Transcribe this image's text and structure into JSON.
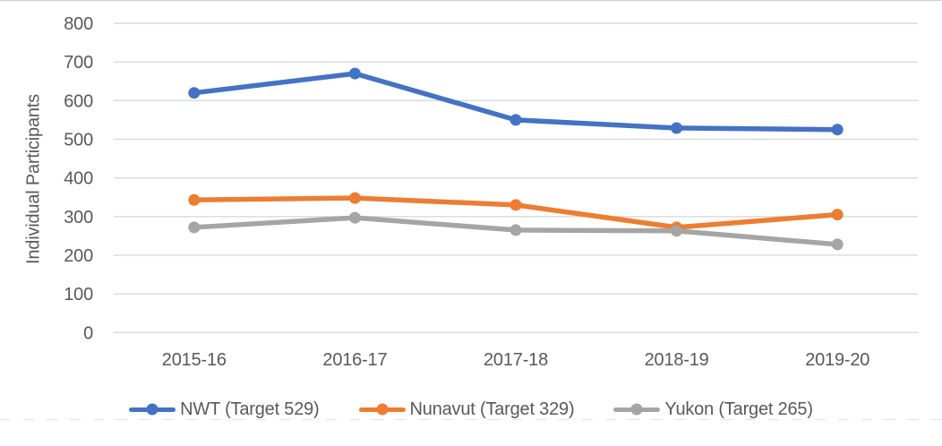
{
  "page": {
    "background": "#ffffff",
    "top_border_color": "#cfcfcf",
    "text_color": "#595959"
  },
  "chart_data": {
    "type": "line",
    "title": "",
    "xlabel": "",
    "ylabel": "Individual Participants",
    "categories": [
      "2015-16",
      "2016-17",
      "2017-18",
      "2018-19",
      "2019-20"
    ],
    "series": [
      {
        "name": "NWT (Target 529)",
        "key": "nwt",
        "color": "#4472C4",
        "values": [
          620,
          670,
          550,
          529,
          525
        ]
      },
      {
        "name": "Nunavut (Target 329)",
        "key": "nunavut",
        "color": "#ED7D31",
        "values": [
          343,
          348,
          330,
          272,
          305
        ]
      },
      {
        "name": "Yukon (Target 265)",
        "key": "yukon",
        "color": "#A5A5A5",
        "values": [
          272,
          297,
          265,
          263,
          228
        ]
      }
    ],
    "y_axis": {
      "min": 0,
      "max": 800,
      "step": 100,
      "ticks": [
        0,
        100,
        200,
        300,
        400,
        500,
        600,
        700,
        800
      ]
    },
    "grid": true,
    "gridline_color": "#D9D9D9",
    "legend_position": "bottom",
    "marker": "circle"
  }
}
